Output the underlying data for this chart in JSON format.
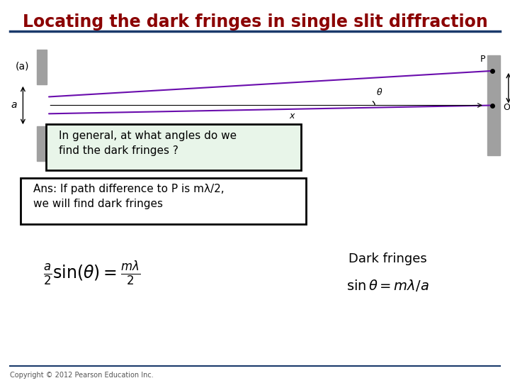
{
  "title": "Locating the dark fringes in single slit diffraction",
  "title_color": "#8B0000",
  "title_fontsize": 17,
  "background_color": "#FFFFFF",
  "line_color_under_title": "#1a3a6b",
  "fig_width": 7.2,
  "fig_height": 5.4,
  "dpi": 100,
  "subtitle_label": "(a)",
  "question_text": "In general, at what angles do we\nfind the dark fringes ?",
  "answer_text": "Ans: If path difference to P is mλ/2,\nwe will find dark fringes",
  "formula_left": "$\\frac{a}{2}\\sin(\\theta) = \\frac{m\\lambda}{2}$",
  "formula_right_label": "Dark fringes",
  "formula_right": "$\\sin\\theta = m\\lambda / a$",
  "copyright_text": "Copyright © 2012 Pearson Education Inc.",
  "slit_color": "#A0A0A0",
  "ray_color": "#6A0DAD",
  "question_box_bg": "#e8f5e9",
  "answer_box_bg": "#FFFFFF"
}
